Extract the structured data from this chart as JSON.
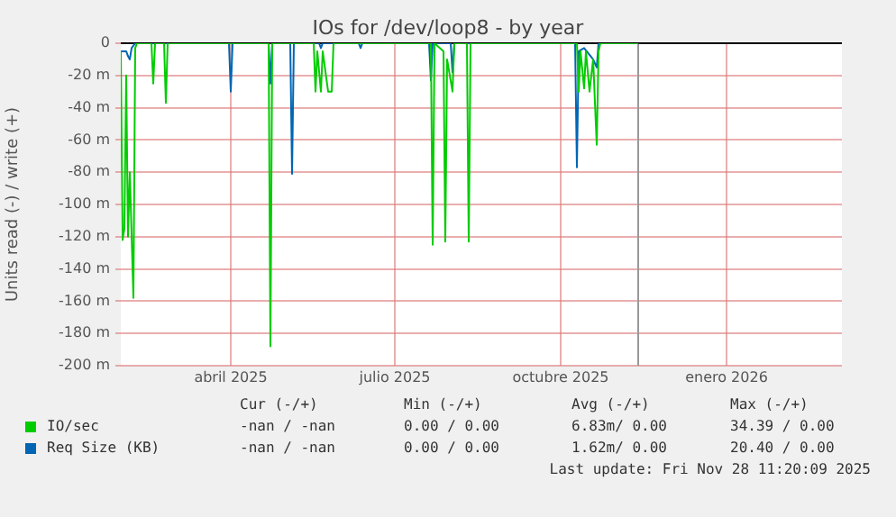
{
  "chart_data": {
    "type": "line",
    "title": "IOs for /dev/loop8 - by year",
    "ylabel": "Units read (-) / write (+)",
    "xlim": [
      "2025-02-14",
      "2026-03-21"
    ],
    "xticks": [
      {
        "value": "2025-04-16",
        "label": "abril 2025"
      },
      {
        "value": "2025-07-16",
        "label": "julio 2025"
      },
      {
        "value": "2025-10-16",
        "label": "octubre 2025"
      },
      {
        "value": "2026-01-16",
        "label": "enero 2026"
      }
    ],
    "ylim": [
      -200,
      0
    ],
    "yticks": [
      {
        "value": -200,
        "label": "-200 m"
      },
      {
        "value": -180,
        "label": "-180 m"
      },
      {
        "value": -160,
        "label": "-160 m"
      },
      {
        "value": -140,
        "label": "-140 m"
      },
      {
        "value": -120,
        "label": "-120 m"
      },
      {
        "value": -100,
        "label": "-100 m"
      },
      {
        "value": -80,
        "label": "-80 m"
      },
      {
        "value": -60,
        "label": "-60 m"
      },
      {
        "value": -40,
        "label": "-40 m"
      },
      {
        "value": -20,
        "label": "-20 m"
      },
      0
    ],
    "grid": true,
    "legend": "bottom",
    "marker": "none",
    "line_style": "solid",
    "ref_lines": [
      {
        "axis": "x",
        "value": "2025-11-28",
        "color": "#999999"
      }
    ],
    "series": [
      {
        "name": "IO/sec",
        "color": "#00cc00",
        "x": [
          "2025-02-14",
          "2025-02-15",
          "2025-02-16",
          "2025-02-17",
          "2025-02-18",
          "2025-02-19",
          "2025-02-21",
          "2025-02-22",
          "2025-02-23",
          "2025-03-03",
          "2025-03-04",
          "2025-03-05",
          "2025-03-10",
          "2025-03-11",
          "2025-03-12",
          "2025-05-07",
          "2025-05-08",
          "2025-05-09",
          "2025-06-01",
          "2025-06-02",
          "2025-06-03",
          "2025-06-05",
          "2025-06-06",
          "2025-06-09",
          "2025-06-11",
          "2025-06-12",
          "2025-08-05",
          "2025-08-06",
          "2025-08-07",
          "2025-08-12",
          "2025-08-13",
          "2025-08-14",
          "2025-08-17",
          "2025-08-18",
          "2025-08-25",
          "2025-08-26",
          "2025-08-27",
          "2025-10-25",
          "2025-10-26",
          "2025-10-27",
          "2025-10-29",
          "2025-10-30",
          "2025-11-01",
          "2025-11-03",
          "2025-11-05",
          "2025-11-06",
          "2025-11-07",
          "2025-11-28"
        ],
        "values": [
          -5,
          -122,
          -115,
          -20,
          -120,
          -80,
          -158,
          -3,
          0,
          0,
          -25,
          0,
          0,
          -37,
          0,
          0,
          -188,
          0,
          0,
          -30,
          -5,
          -30,
          -5,
          -30,
          -30,
          0,
          0,
          -125,
          0,
          -5,
          -123,
          -10,
          -30,
          0,
          0,
          -123,
          0,
          0,
          -30,
          -5,
          -28,
          -5,
          -30,
          -10,
          -63,
          -5,
          0,
          0
        ]
      },
      {
        "name": "Req Size (KB)",
        "color": "#0066b3",
        "x": [
          "2025-02-14",
          "2025-02-17",
          "2025-02-18",
          "2025-02-19",
          "2025-02-20",
          "2025-02-22",
          "2025-04-15",
          "2025-04-16",
          "2025-04-17",
          "2025-05-07",
          "2025-05-08",
          "2025-05-09",
          "2025-05-19",
          "2025-05-20",
          "2025-05-21",
          "2025-06-04",
          "2025-06-05",
          "2025-06-06",
          "2025-06-26",
          "2025-06-27",
          "2025-06-28",
          "2025-08-04",
          "2025-08-05",
          "2025-08-06",
          "2025-08-16",
          "2025-08-17",
          "2025-08-18",
          "2025-10-24",
          "2025-10-25",
          "2025-10-26",
          "2025-10-29",
          "2025-11-03",
          "2025-11-05",
          "2025-11-06",
          "2025-11-28"
        ],
        "values": [
          -5,
          -5,
          -8,
          -10,
          -3,
          0,
          0,
          -30,
          0,
          0,
          -25,
          0,
          0,
          -81,
          0,
          0,
          -3,
          0,
          0,
          -3,
          0,
          0,
          -23,
          0,
          0,
          -18,
          0,
          0,
          -77,
          -5,
          -3,
          -10,
          -15,
          0,
          0
        ]
      }
    ],
    "annotations": [
      "Cur (-/+)",
      "Min (-/+)",
      "Avg (-/+)",
      "Max (-/+)",
      "-nan / -nan",
      "0.00 / 0.00",
      "6.83m/ 0.00",
      "34.39 / 0.00",
      "-nan / -nan",
      "0.00 / 0.00",
      "1.62m/ 0.00",
      "20.40 / 0.00",
      "Last update: Fri Nov 28 11:20:09 2025"
    ]
  }
}
